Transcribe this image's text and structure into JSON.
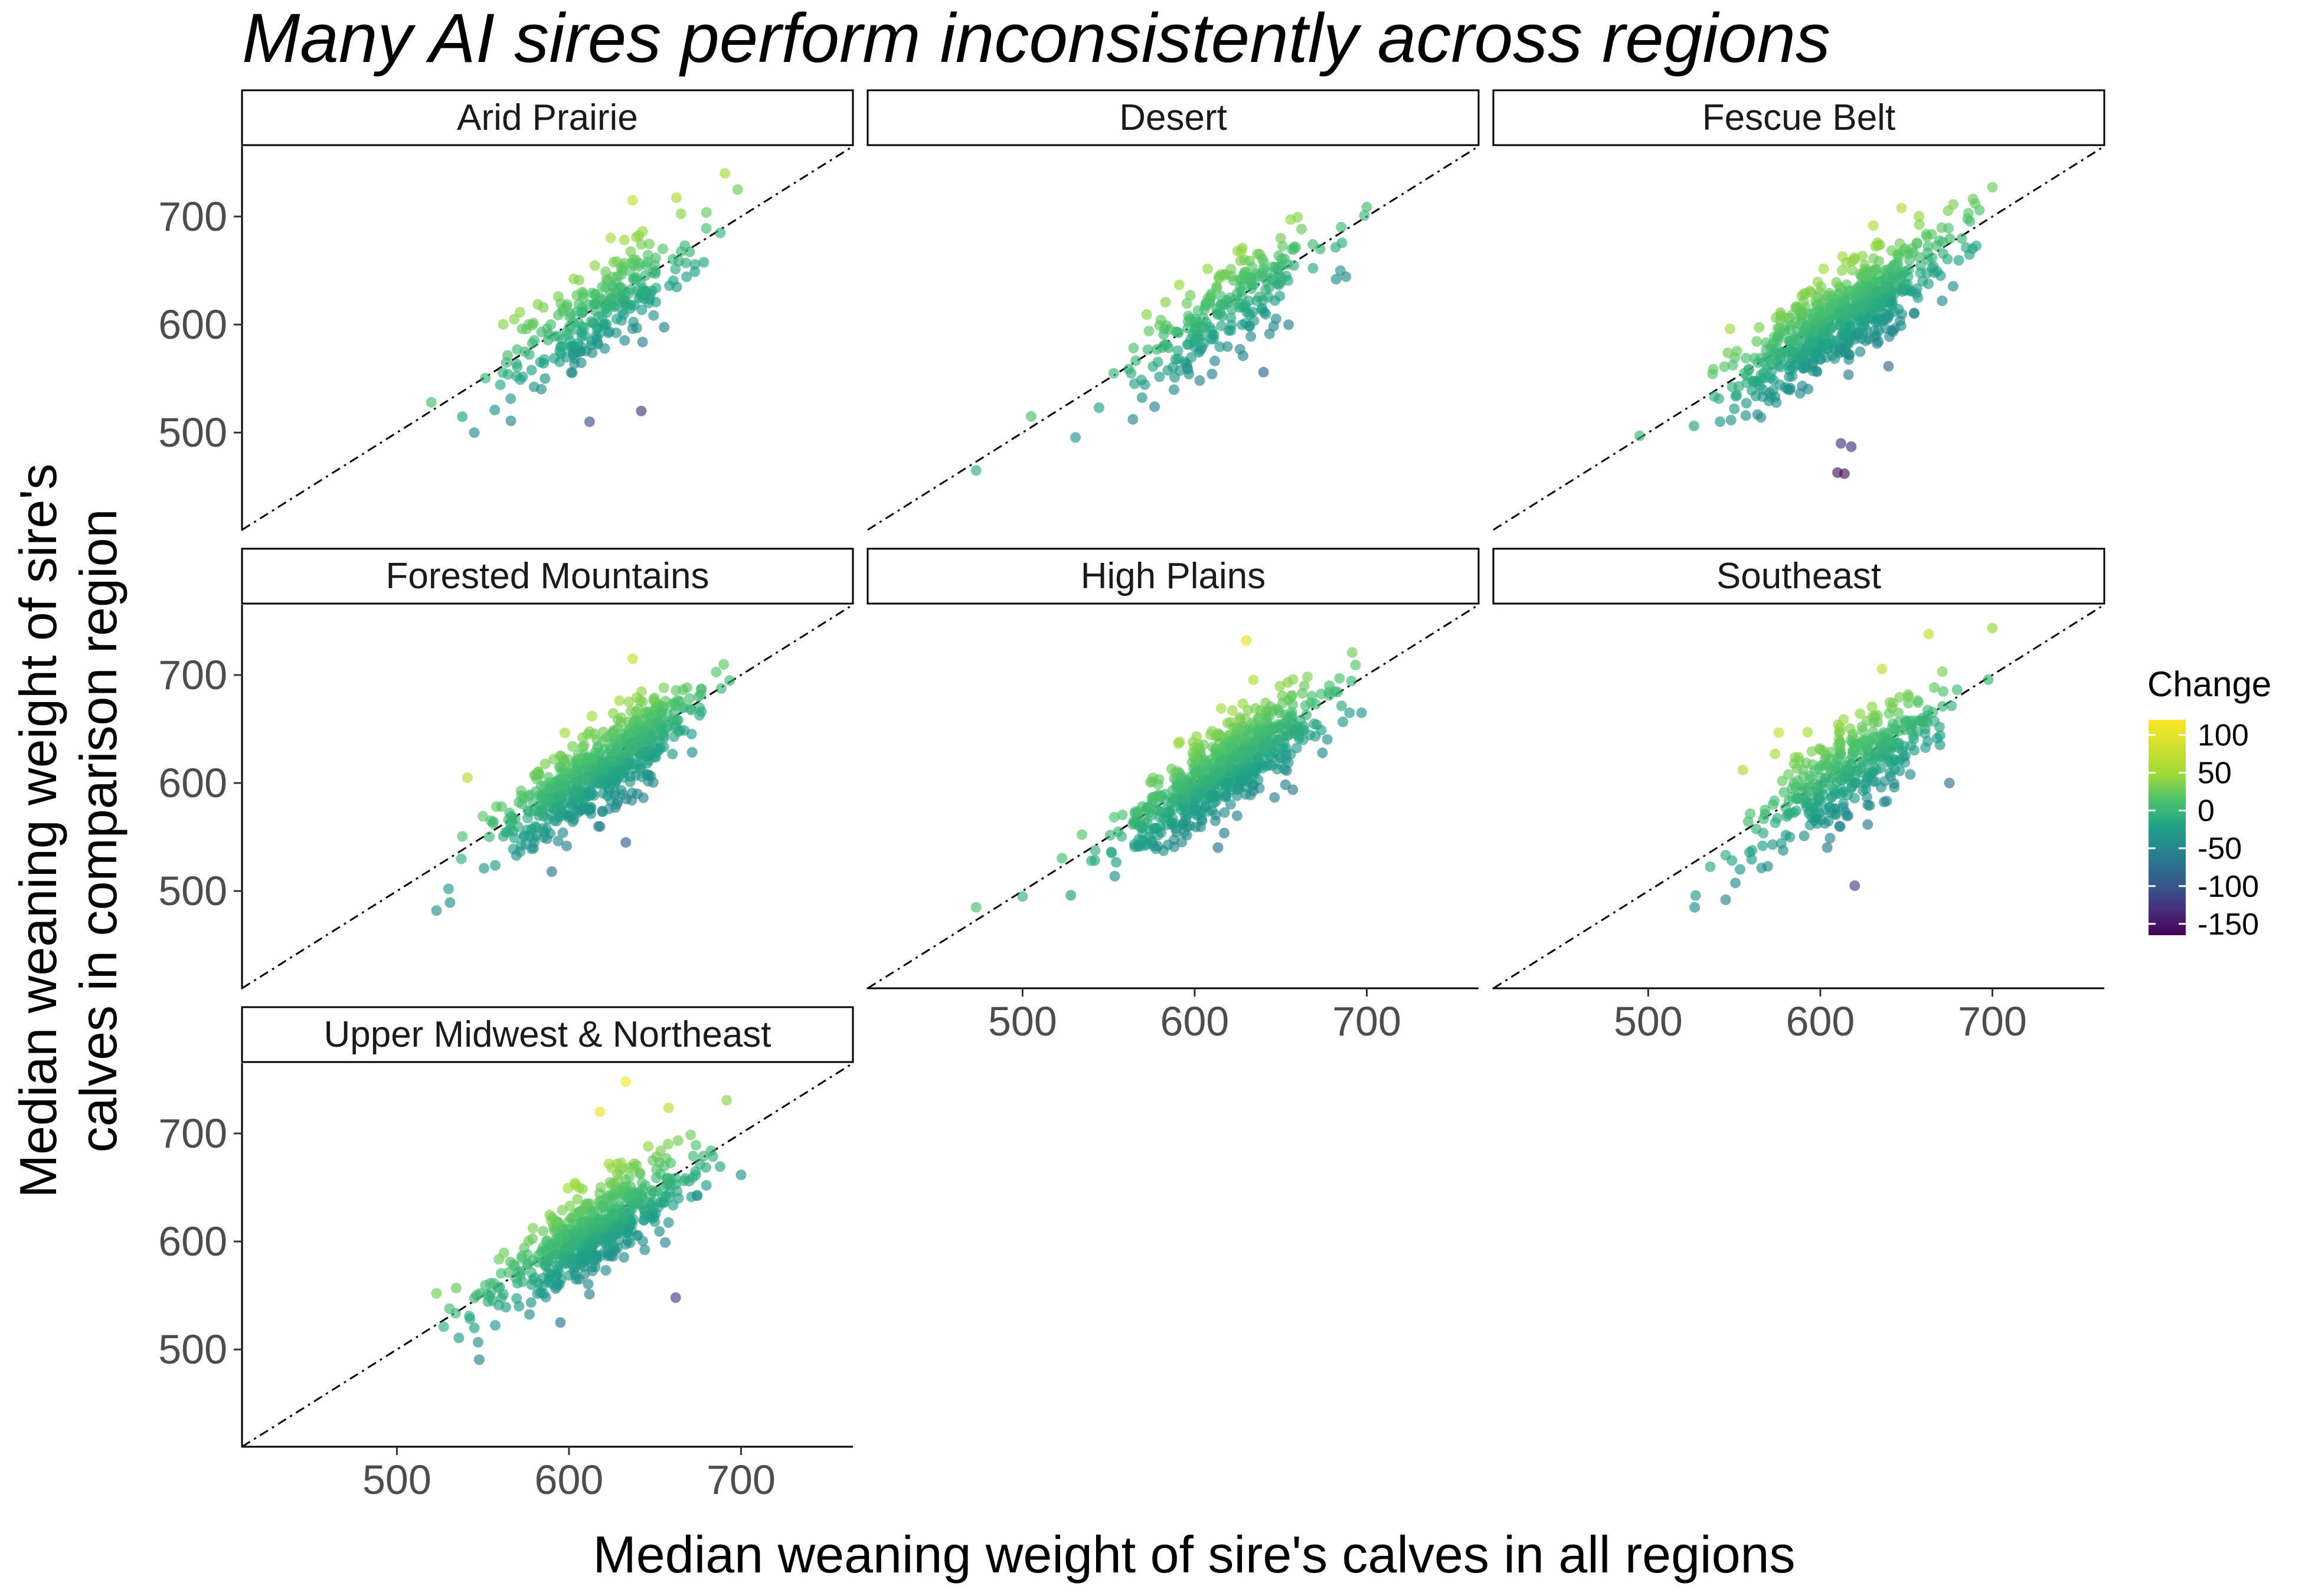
{
  "chart_data": {
    "type": "scatter",
    "title": "Many AI sires perform inconsistently across regions",
    "xlabel": "Median weaning weight of sire's calves in all regions",
    "ylabel_lines": [
      "Median weaning weight of sire's",
      "calves in comparison region"
    ],
    "xlim": [
      410,
      765
    ],
    "ylim": [
      410,
      765
    ],
    "x_ticks": [
      500,
      600,
      700
    ],
    "y_ticks": [
      500,
      600,
      700
    ],
    "reference_line": "y = x (dashed)",
    "grid": false,
    "legend": {
      "title": "Change",
      "position": "right",
      "type": "colorbar",
      "range": [
        -165,
        120
      ],
      "ticks": [
        100,
        50,
        0,
        -50,
        -100,
        -150
      ],
      "colormap": "viridis"
    },
    "panels": [
      {
        "name": "Arid Prairie",
        "center_x": 615,
        "sd_x": 28,
        "sd_change": 22,
        "n": 260,
        "x_min": 505,
        "outliers": [
          [
            698,
            725
          ],
          [
            637,
            715
          ],
          [
            612,
            510
          ],
          [
            642,
            520
          ],
          [
            545,
            500
          ],
          [
            520,
            528
          ]
        ]
      },
      {
        "name": "Desert",
        "center_x": 618,
        "sd_x": 28,
        "sd_change": 22,
        "n": 240,
        "x_min": 460,
        "outliers": [
          [
            473,
            465
          ],
          [
            505,
            515
          ],
          [
            625,
            668
          ],
          [
            650,
            680
          ],
          [
            640,
            556
          ]
        ]
      },
      {
        "name": "Fescue Belt",
        "center_x": 612,
        "sd_x": 30,
        "sd_change": 22,
        "n": 650,
        "x_min": 495,
        "outliers": [
          [
            610,
            463
          ],
          [
            614,
            462
          ],
          [
            612,
            490
          ],
          [
            618,
            487
          ],
          [
            690,
            712
          ],
          [
            495,
            497
          ]
        ]
      },
      {
        "name": "Forested Mountains",
        "center_x": 620,
        "sd_x": 28,
        "sd_change": 20,
        "n": 600,
        "x_min": 515,
        "outliers": [
          [
            523,
            482
          ],
          [
            530,
            502
          ],
          [
            541,
            605
          ],
          [
            590,
            518
          ],
          [
            633,
            545
          ],
          [
            637,
            715
          ]
        ]
      },
      {
        "name": "High Plains",
        "center_x": 618,
        "sd_x": 28,
        "sd_change": 20,
        "n": 650,
        "x_min": 470,
        "outliers": [
          [
            630,
            732
          ],
          [
            473,
            485
          ],
          [
            500,
            495
          ],
          [
            690,
            665
          ],
          [
            697,
            665
          ],
          [
            540,
            528
          ]
        ]
      },
      {
        "name": "Southeast",
        "center_x": 618,
        "sd_x": 28,
        "sd_change": 22,
        "n": 380,
        "x_min": 525,
        "outliers": [
          [
            663,
            738
          ],
          [
            527,
            485
          ],
          [
            545,
            492
          ],
          [
            675,
            600
          ],
          [
            555,
            612
          ],
          [
            620,
            505
          ]
        ]
      },
      {
        "name": "Upper Midwest & Northeast",
        "center_x": 615,
        "sd_x": 28,
        "sd_change": 20,
        "n": 550,
        "x_min": 520,
        "outliers": [
          [
            633,
            748
          ],
          [
            618,
            720
          ],
          [
            662,
            548
          ],
          [
            523,
            552
          ],
          [
            545,
            520
          ],
          [
            595,
            525
          ]
        ]
      }
    ]
  }
}
